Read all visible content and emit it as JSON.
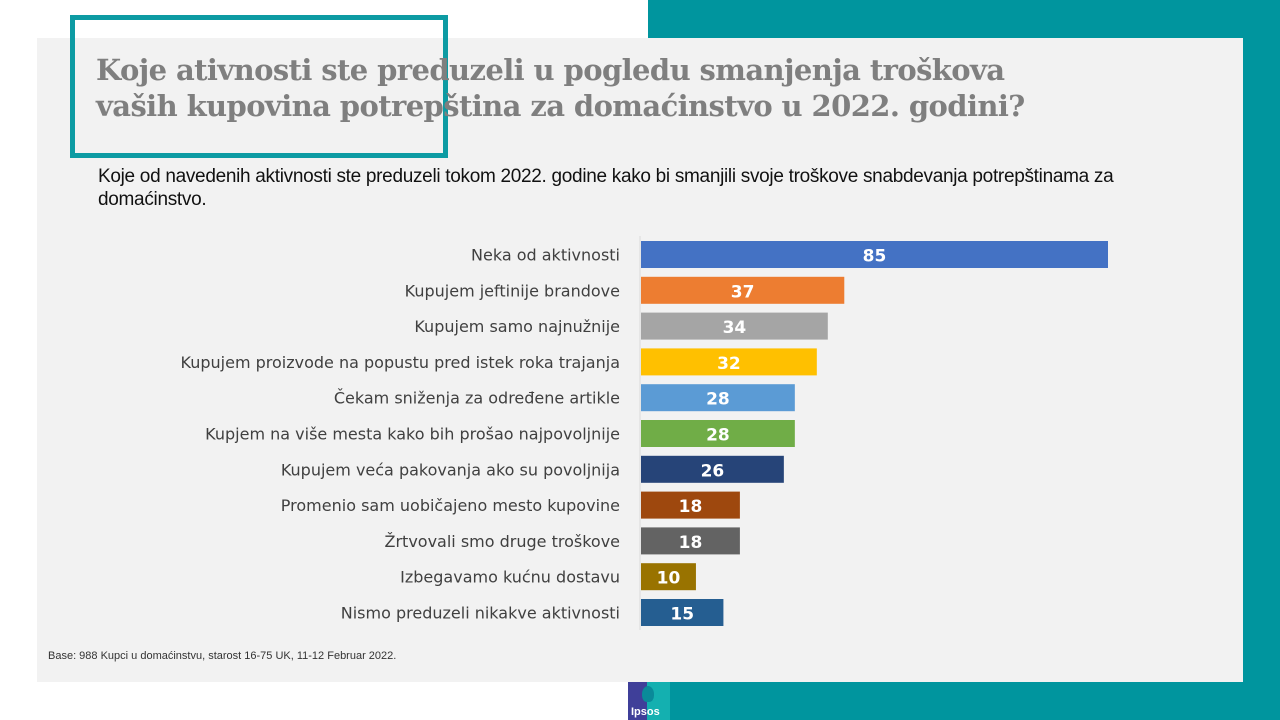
{
  "header": {
    "title_line1": "Koje ativnosti ste preduzeli u pogledu smanjenja troškova",
    "title_line2": "vaših kupovina potrepština za domaćinstvo u 2022. godini?",
    "subtitle": "Koje od navedenih aktivnosti ste preduzeli tokom 2022. godine kako bi smanjili svoje troškove snabdevanja potrepštinama za domaćinstvo."
  },
  "footer": {
    "base_note": "Base: 988 Kupci u domaćinstvu, starost 16-75  UK, 11-12 Februar 2022.",
    "logo_text": "Ipsos"
  },
  "colors": {
    "teal_accent": "#00959e",
    "panel_bg": "#f2f2f2",
    "title_gray": "#7f7f7f"
  },
  "chart_data": {
    "type": "bar",
    "orientation": "horizontal",
    "title": "Koje ativnosti ste preduzeli u pogledu smanjenja troškova vaših kupovina potrepština za domaćinstvo u 2022. godini?",
    "xlabel": "",
    "ylabel": "",
    "xlim": [
      0,
      85
    ],
    "grid": false,
    "legend": "none",
    "categories": [
      "Neka od aktivnosti",
      "Kupujem jeftinije brandove",
      "Kupujem samo najnužnije",
      "Kupujem proizvode na popustu pred istek roka trajanja",
      "Čekam sniženja za određene artikle",
      "Kupjem na više mesta kako bih prošao najpovoljnije",
      "Kupujem veća pakovanja ako su povoljnija",
      "Promenio sam uobičajeno mesto kupovine",
      "Žrtvovali smo druge troškove",
      "Izbegavamo kućnu dostavu",
      "Nismo preduzeli nikakve aktivnosti"
    ],
    "values": [
      85,
      37,
      34,
      32,
      28,
      28,
      26,
      18,
      18,
      10,
      15
    ],
    "bar_colors": [
      "#4472c4",
      "#ed7d31",
      "#a5a5a5",
      "#ffc000",
      "#5b9bd5",
      "#70ad47",
      "#264478",
      "#9e480e",
      "#636363",
      "#997300",
      "#255e91"
    ]
  }
}
